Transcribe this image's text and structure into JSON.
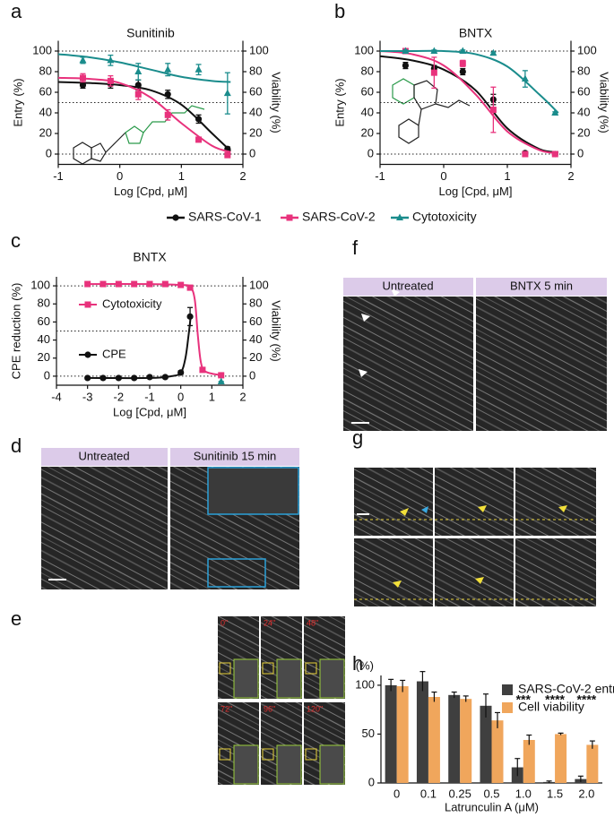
{
  "panel_letters": [
    "a",
    "b",
    "c",
    "d",
    "e",
    "f",
    "g",
    "h"
  ],
  "image_panels": {
    "d": {
      "labels": [
        "Untreated",
        "Sunitinib 15 min"
      ]
    },
    "e": {
      "labels": [
        "0\"",
        "24\"",
        "48\"",
        "72\"",
        "96\"",
        "120\""
      ]
    },
    "f": {
      "labels": [
        "Untreated",
        "BNTX 5 min"
      ]
    }
  },
  "chart_data": [
    {
      "type": "scatter",
      "title": "Sunitinib",
      "xlabel": "Log [Cpd, μM]",
      "ylabel": "Entry (%)",
      "y2label": "Viability (%)",
      "xlim": [
        -1,
        2
      ],
      "xticks": [
        -1,
        0,
        1,
        2
      ],
      "ylim": [
        -10,
        110
      ],
      "yticks": [
        0,
        20,
        40,
        60,
        80,
        100
      ],
      "y2lim": [
        -10,
        110
      ],
      "y2ticks": [
        0,
        20,
        40,
        60,
        80,
        100
      ],
      "hlines": [
        0,
        50,
        100
      ],
      "legend": "bottom",
      "series": [
        {
          "name": "SARS-CoV-1",
          "color": "#111111",
          "marker": "circle",
          "x": [
            -0.6,
            -0.15,
            0.3,
            0.78,
            1.28,
            1.75
          ],
          "values": [
            67,
            68,
            67,
            58,
            34,
            5
          ],
          "errors": [
            3,
            4,
            5,
            4,
            4,
            2
          ],
          "fit": {
            "x": [
              -1,
              -0.5,
              0,
              0.5,
              1,
              1.5,
              1.8
            ],
            "values": [
              70,
              69,
              67,
              62,
              48,
              20,
              3
            ]
          }
        },
        {
          "name": "SARS-CoV-2",
          "color": "#e8327c",
          "marker": "square",
          "x": [
            -0.6,
            -0.15,
            0.3,
            0.78,
            1.28,
            1.75
          ],
          "values": [
            74,
            71,
            58,
            38,
            14,
            -1
          ],
          "errors": [
            4,
            5,
            5,
            5,
            2,
            1
          ],
          "fit": {
            "x": [
              -1,
              -0.5,
              0,
              0.5,
              1,
              1.5,
              1.8
            ],
            "values": [
              74,
              73,
              69,
              55,
              30,
              8,
              2
            ]
          }
        },
        {
          "name": "Cytotoxicity",
          "color": "#1a8c8c",
          "marker": "triangle",
          "axis": "y2",
          "x": [
            -0.6,
            -0.15,
            0.3,
            0.78,
            1.28,
            1.75
          ],
          "values": [
            91,
            91,
            80,
            82,
            82,
            59
          ],
          "errors": [
            3,
            5,
            8,
            6,
            5,
            20
          ],
          "fit": {
            "x": [
              -1,
              -0.5,
              0,
              0.5,
              1,
              1.5,
              1.8
            ],
            "values": [
              97,
              94,
              89,
              82,
              75,
              71,
              70
            ]
          }
        }
      ]
    },
    {
      "type": "scatter",
      "title": "BNTX",
      "xlabel": "Log [Cpd, μM]",
      "ylabel": "Entry (%)",
      "y2label": "Viability (%)",
      "xlim": [
        -1,
        2
      ],
      "xticks": [
        -1,
        0,
        1,
        2
      ],
      "ylim": [
        -10,
        110
      ],
      "yticks": [
        0,
        20,
        40,
        60,
        80,
        100
      ],
      "y2lim": [
        -10,
        110
      ],
      "y2ticks": [
        0,
        20,
        40,
        60,
        80,
        100
      ],
      "hlines": [
        0,
        50,
        100
      ],
      "series": [
        {
          "name": "SARS-CoV-1",
          "color": "#111111",
          "marker": "circle",
          "x": [
            -0.6,
            -0.15,
            0.3,
            0.78,
            1.28,
            1.75
          ],
          "values": [
            86,
            83,
            80,
            53,
            1,
            0
          ],
          "errors": [
            3,
            3,
            3,
            5,
            1,
            1
          ],
          "fit": {
            "x": [
              -1,
              -0.5,
              0,
              0.5,
              1,
              1.5,
              1.8
            ],
            "values": [
              95,
              91,
              82,
              62,
              25,
              5,
              2
            ]
          }
        },
        {
          "name": "SARS-CoV-2",
          "color": "#e8327c",
          "marker": "square",
          "x": [
            -0.6,
            -0.15,
            0.3,
            0.78,
            1.28,
            1.75
          ],
          "values": [
            100,
            79,
            88,
            43,
            0,
            0
          ],
          "errors": [
            1,
            15,
            3,
            22,
            1,
            1
          ],
          "fit": {
            "x": [
              -1,
              -0.5,
              0,
              0.5,
              1,
              1.5,
              1.8
            ],
            "values": [
              100,
              97,
              86,
              58,
              22,
              4,
              1
            ]
          }
        },
        {
          "name": "Cytotoxicity",
          "color": "#1a8c8c",
          "marker": "triangle",
          "axis": "y2",
          "x": [
            -0.6,
            -0.15,
            0.3,
            0.78,
            1.28,
            1.75
          ],
          "values": [
            100,
            100,
            100,
            98,
            73,
            40
          ],
          "errors": [
            1,
            1,
            1,
            1,
            8,
            1
          ],
          "fit": {
            "x": [
              -1,
              -0.5,
              0,
              0.5,
              1,
              1.5,
              1.8
            ],
            "values": [
              100,
              100,
              100,
              97,
              85,
              58,
              40
            ]
          }
        }
      ]
    },
    {
      "type": "scatter",
      "title": "BNTX",
      "xlabel": "Log [Cpd, μM]",
      "ylabel": "CPE reduction (%)",
      "y2label": "Viability (%)",
      "xlim": [
        -4,
        2
      ],
      "xticks": [
        -4,
        -3,
        -2,
        -1,
        0,
        1,
        2
      ],
      "ylim": [
        -10,
        110
      ],
      "yticks": [
        0,
        20,
        40,
        60,
        80,
        100
      ],
      "y2lim": [
        -10,
        110
      ],
      "y2ticks": [
        0,
        20,
        40,
        60,
        80,
        100
      ],
      "hlines": [
        0,
        50,
        100
      ],
      "legend": "inside",
      "series": [
        {
          "name": "Cytotoxicity",
          "color": "#e8327c",
          "marker": "square",
          "axis": "y2",
          "x": [
            -3,
            -2.5,
            -2,
            -1.5,
            -1,
            -0.5,
            0,
            0.3,
            0.7,
            1.3
          ],
          "values": [
            102,
            102,
            102,
            102,
            102,
            102,
            101,
            98,
            7,
            1
          ],
          "errors": [
            1,
            1,
            1,
            1,
            1,
            1,
            1,
            1,
            2,
            1
          ],
          "fit": {
            "x": [
              -3,
              -1,
              0,
              0.3,
              0.45,
              0.55,
              0.65,
              0.8,
              1.3
            ],
            "values": [
              102,
              102,
              101,
              99,
              85,
              45,
              15,
              5,
              1
            ]
          }
        },
        {
          "name": "CPE",
          "color": "#111111",
          "marker": "circle",
          "x": [
            -3,
            -2.5,
            -2,
            -1.5,
            -1,
            -0.5,
            0,
            0.3
          ],
          "values": [
            -2,
            -2,
            -2,
            -2,
            -1,
            -1,
            4,
            66
          ],
          "errors": [
            1,
            1,
            1,
            1,
            1,
            1,
            2,
            10
          ],
          "fit": {
            "x": [
              -3,
              -1,
              -0.3,
              0,
              0.15,
              0.25,
              0.32
            ],
            "values": [
              -2,
              -2,
              0,
              4,
              20,
              45,
              66
            ]
          }
        },
        {
          "color": "#1a8c8c",
          "marker": "triangle",
          "axis": "y2",
          "x": [
            1.3
          ],
          "values": [
            -6
          ],
          "errors": [
            0
          ]
        }
      ]
    },
    {
      "type": "bar",
      "xlabel": "Latrunculin A (μM)",
      "ylabel": "(%)",
      "ylim": [
        0,
        110
      ],
      "yticks": [
        0,
        50,
        100
      ],
      "legend": "top-right",
      "categories": [
        "0",
        "0.1",
        "0.25",
        "0.5",
        "1.0",
        "1.5",
        "2.0"
      ],
      "annotations": [
        null,
        null,
        null,
        null,
        "***",
        "****",
        "****"
      ],
      "series": [
        {
          "name": "SARS-CoV-2 entry",
          "color": "#3f3f3f",
          "values": [
            100,
            104,
            90,
            79,
            16,
            1,
            4
          ],
          "errors": [
            6,
            10,
            3,
            12,
            9,
            1,
            3
          ]
        },
        {
          "name": "Cell viability",
          "color": "#f0a65c",
          "values": [
            99,
            88,
            86,
            64,
            44,
            50,
            39
          ],
          "errors": [
            6,
            5,
            3,
            8,
            5,
            1,
            4
          ]
        }
      ]
    }
  ]
}
